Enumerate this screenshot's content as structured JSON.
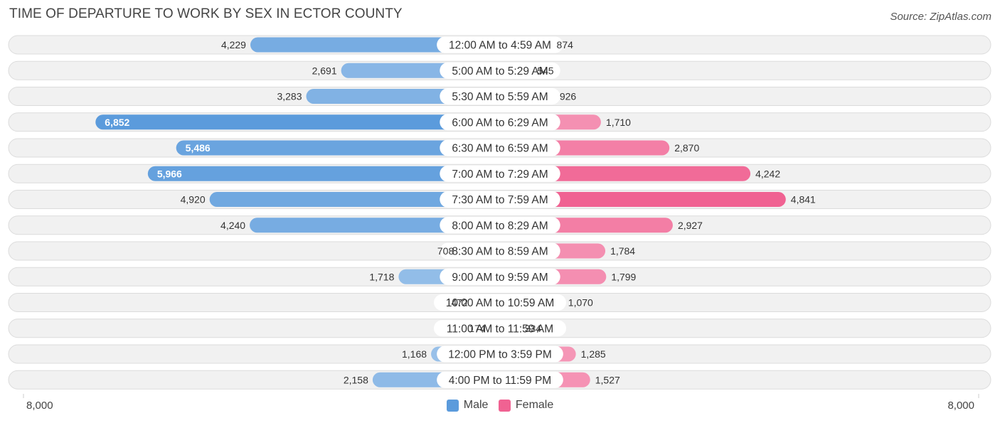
{
  "title": "TIME OF DEPARTURE TO WORK BY SEX IN ECTOR COUNTY",
  "source": "Source: ZipAtlas.com",
  "colors": {
    "male": "#5b9bdc",
    "female": "#f06292"
  },
  "legend": {
    "male_label": "Male",
    "female_label": "Female"
  },
  "axis": {
    "left_label": "8,000",
    "right_label": "8,000"
  },
  "chart_data": {
    "type": "bar",
    "orientation": "horizontal-diverging",
    "title": "TIME OF DEPARTURE TO WORK BY SEX IN ECTOR COUNTY",
    "xlim": [
      -8000,
      8000
    ],
    "categories": [
      "12:00 AM to 4:59 AM",
      "5:00 AM to 5:29 AM",
      "5:30 AM to 5:59 AM",
      "6:00 AM to 6:29 AM",
      "6:30 AM to 6:59 AM",
      "7:00 AM to 7:29 AM",
      "7:30 AM to 7:59 AM",
      "8:00 AM to 8:29 AM",
      "8:30 AM to 8:59 AM",
      "9:00 AM to 9:59 AM",
      "10:00 AM to 10:59 AM",
      "11:00 AM to 11:59 AM",
      "12:00 PM to 3:59 PM",
      "4:00 PM to 11:59 PM"
    ],
    "series": [
      {
        "name": "Male",
        "values": [
          4229,
          2691,
          3283,
          6852,
          5486,
          5966,
          4920,
          4240,
          708,
          1718,
          472,
          174,
          1168,
          2158
        ],
        "labels": [
          "4,229",
          "2,691",
          "3,283",
          "6,852",
          "5,486",
          "5,966",
          "4,920",
          "4,240",
          "708",
          "1,718",
          "472",
          "174",
          "1,168",
          "2,158"
        ]
      },
      {
        "name": "Female",
        "values": [
          874,
          545,
          926,
          1710,
          2870,
          4242,
          4841,
          2927,
          1784,
          1799,
          1070,
          334,
          1285,
          1527
        ],
        "labels": [
          "874",
          "545",
          "926",
          "1,710",
          "2,870",
          "4,242",
          "4,841",
          "2,927",
          "1,784",
          "1,799",
          "1,070",
          "334",
          "1,285",
          "1,527"
        ]
      }
    ]
  }
}
